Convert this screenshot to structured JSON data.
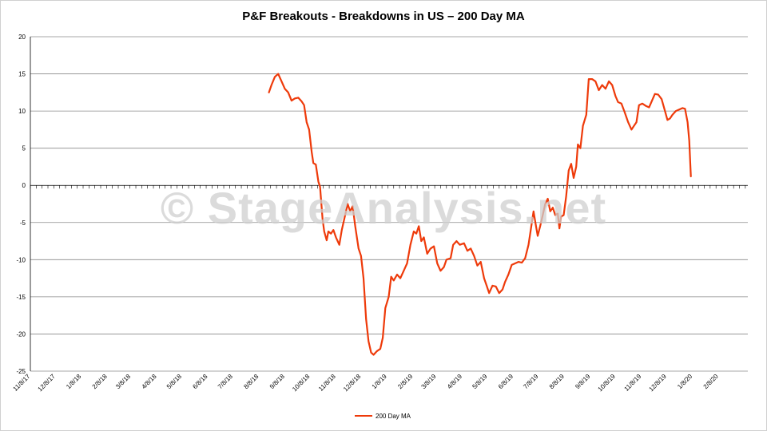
{
  "chart_data": {
    "type": "line",
    "title": "P&F Breakouts - Breakdowns in US – 200 Day MA",
    "xlabel": "",
    "ylabel": "",
    "ylim": [
      -25,
      20
    ],
    "y_ticks": [
      "20",
      "15",
      "10",
      "5",
      "0",
      "-5",
      "-10",
      "-15",
      "-20",
      "-25"
    ],
    "x_tick_labels": [
      "11/8/17",
      "12/8/17",
      "1/8/18",
      "2/8/18",
      "3/8/18",
      "4/8/18",
      "5/8/18",
      "6/8/18",
      "7/8/18",
      "8/8/18",
      "9/8/18",
      "10/8/18",
      "11/8/18",
      "12/8/18",
      "1/8/19",
      "2/8/19",
      "3/8/19",
      "4/8/19",
      "5/8/19",
      "6/8/19",
      "7/8/19",
      "8/8/19",
      "9/8/19",
      "10/8/19",
      "11/8/19",
      "12/8/19",
      "1/8/20",
      "2/8/20"
    ],
    "grid": true,
    "legend": "bottom",
    "series": [
      {
        "name": "200 Day MA",
        "color": "#ee3a0a",
        "points": [
          [
            "2018-08-20",
            12.5
          ],
          [
            "2018-08-23",
            13.5
          ],
          [
            "2018-08-27",
            14.6
          ],
          [
            "2018-08-31",
            15.0
          ],
          [
            "2018-09-04",
            14.0
          ],
          [
            "2018-09-08",
            13.0
          ],
          [
            "2018-09-12",
            12.5
          ],
          [
            "2018-09-16",
            11.4
          ],
          [
            "2018-09-20",
            11.7
          ],
          [
            "2018-09-24",
            11.8
          ],
          [
            "2018-09-28",
            11.3
          ],
          [
            "2018-10-01",
            10.8
          ],
          [
            "2018-10-04",
            8.5
          ],
          [
            "2018-10-07",
            7.5
          ],
          [
            "2018-10-10",
            4.5
          ],
          [
            "2018-10-12",
            3.0
          ],
          [
            "2018-10-15",
            2.8
          ],
          [
            "2018-10-18",
            0.5
          ],
          [
            "2018-10-20",
            -0.2
          ],
          [
            "2018-10-23",
            -4.5
          ],
          [
            "2018-10-25",
            -6.2
          ],
          [
            "2018-10-28",
            -7.4
          ],
          [
            "2018-10-30",
            -6.2
          ],
          [
            "2018-11-02",
            -6.5
          ],
          [
            "2018-11-05",
            -6.0
          ],
          [
            "2018-11-08",
            -7.0
          ],
          [
            "2018-11-12",
            -8.0
          ],
          [
            "2018-11-15",
            -6.0
          ],
          [
            "2018-11-19",
            -4.0
          ],
          [
            "2018-11-22",
            -2.5
          ],
          [
            "2018-11-25",
            -3.5
          ],
          [
            "2018-11-28",
            -2.8
          ],
          [
            "2018-12-01",
            -5.5
          ],
          [
            "2018-12-05",
            -8.5
          ],
          [
            "2018-12-08",
            -9.5
          ],
          [
            "2018-12-11",
            -12.5
          ],
          [
            "2018-12-14",
            -18.0
          ],
          [
            "2018-12-17",
            -21.0
          ],
          [
            "2018-12-20",
            -22.5
          ],
          [
            "2018-12-23",
            -22.8
          ],
          [
            "2018-12-27",
            -22.3
          ],
          [
            "2018-12-31",
            -22.0
          ],
          [
            "2019-01-03",
            -20.5
          ],
          [
            "2019-01-06",
            -16.5
          ],
          [
            "2019-01-10",
            -15.0
          ],
          [
            "2019-01-13",
            -12.3
          ],
          [
            "2019-01-16",
            -12.8
          ],
          [
            "2019-01-20",
            -12.0
          ],
          [
            "2019-01-24",
            -12.5
          ],
          [
            "2019-01-28",
            -11.5
          ],
          [
            "2019-02-01",
            -10.5
          ],
          [
            "2019-02-05",
            -8.0
          ],
          [
            "2019-02-09",
            -6.2
          ],
          [
            "2019-02-12",
            -6.5
          ],
          [
            "2019-02-15",
            -5.5
          ],
          [
            "2019-02-18",
            -7.5
          ],
          [
            "2019-02-21",
            -7.0
          ],
          [
            "2019-02-25",
            -9.2
          ],
          [
            "2019-03-01",
            -8.5
          ],
          [
            "2019-03-05",
            -8.2
          ],
          [
            "2019-03-09",
            -10.5
          ],
          [
            "2019-03-13",
            -11.5
          ],
          [
            "2019-03-17",
            -11.0
          ],
          [
            "2019-03-20",
            -10.0
          ],
          [
            "2019-03-25",
            -9.8
          ],
          [
            "2019-03-28",
            -8.0
          ],
          [
            "2019-04-01",
            -7.5
          ],
          [
            "2019-04-05",
            -8.0
          ],
          [
            "2019-04-10",
            -7.8
          ],
          [
            "2019-04-14",
            -8.8
          ],
          [
            "2019-04-18",
            -8.5
          ],
          [
            "2019-04-22",
            -9.5
          ],
          [
            "2019-04-26",
            -10.8
          ],
          [
            "2019-04-30",
            -10.3
          ],
          [
            "2019-05-04",
            -12.5
          ],
          [
            "2019-05-07",
            -13.5
          ],
          [
            "2019-05-10",
            -14.5
          ],
          [
            "2019-05-14",
            -13.5
          ],
          [
            "2019-05-18",
            -13.6
          ],
          [
            "2019-05-22",
            -14.5
          ],
          [
            "2019-05-26",
            -14.0
          ],
          [
            "2019-05-29",
            -13.0
          ],
          [
            "2019-06-02",
            -12.0
          ],
          [
            "2019-06-06",
            -10.7
          ],
          [
            "2019-06-10",
            -10.5
          ],
          [
            "2019-06-14",
            -10.3
          ],
          [
            "2019-06-18",
            -10.4
          ],
          [
            "2019-06-22",
            -9.8
          ],
          [
            "2019-06-26",
            -8.0
          ],
          [
            "2019-06-30",
            -5.0
          ],
          [
            "2019-07-02",
            -3.5
          ],
          [
            "2019-07-05",
            -5.5
          ],
          [
            "2019-07-07",
            -6.8
          ],
          [
            "2019-07-10",
            -5.5
          ],
          [
            "2019-07-13",
            -4.0
          ],
          [
            "2019-07-16",
            -2.5
          ],
          [
            "2019-07-19",
            -1.8
          ],
          [
            "2019-07-22",
            -3.5
          ],
          [
            "2019-07-25",
            -3.0
          ],
          [
            "2019-07-28",
            -4.0
          ],
          [
            "2019-07-31",
            -3.8
          ],
          [
            "2019-08-02",
            -5.8
          ],
          [
            "2019-08-04",
            -4.2
          ],
          [
            "2019-08-07",
            -4.0
          ],
          [
            "2019-08-10",
            -1.5
          ],
          [
            "2019-08-13",
            2.0
          ],
          [
            "2019-08-16",
            2.9
          ],
          [
            "2019-08-19",
            1.0
          ],
          [
            "2019-08-22",
            2.5
          ],
          [
            "2019-08-24",
            5.5
          ],
          [
            "2019-08-27",
            5.0
          ],
          [
            "2019-08-30",
            8.0
          ],
          [
            "2019-09-03",
            9.5
          ],
          [
            "2019-09-06",
            14.3
          ],
          [
            "2019-09-10",
            14.3
          ],
          [
            "2019-09-14",
            14.0
          ],
          [
            "2019-09-18",
            12.8
          ],
          [
            "2019-09-22",
            13.5
          ],
          [
            "2019-09-26",
            13.0
          ],
          [
            "2019-09-30",
            14.0
          ],
          [
            "2019-10-04",
            13.5
          ],
          [
            "2019-10-08",
            12.0
          ],
          [
            "2019-10-11",
            11.2
          ],
          [
            "2019-10-15",
            11.0
          ],
          [
            "2019-10-19",
            9.8
          ],
          [
            "2019-10-23",
            8.5
          ],
          [
            "2019-10-27",
            7.5
          ],
          [
            "2019-10-30",
            8.0
          ],
          [
            "2019-11-02",
            8.5
          ],
          [
            "2019-11-05",
            10.8
          ],
          [
            "2019-11-09",
            11.0
          ],
          [
            "2019-11-13",
            10.7
          ],
          [
            "2019-11-17",
            10.5
          ],
          [
            "2019-11-21",
            11.5
          ],
          [
            "2019-11-24",
            12.3
          ],
          [
            "2019-11-28",
            12.2
          ],
          [
            "2019-12-02",
            11.6
          ],
          [
            "2019-12-06",
            10.0
          ],
          [
            "2019-12-09",
            8.8
          ],
          [
            "2019-12-12",
            9.0
          ],
          [
            "2019-12-15",
            9.5
          ],
          [
            "2019-12-19",
            10.0
          ],
          [
            "2019-12-23",
            10.2
          ],
          [
            "2019-12-27",
            10.4
          ],
          [
            "2019-12-30",
            10.3
          ],
          [
            "2020-01-02",
            8.5
          ],
          [
            "2020-01-04",
            6.0
          ],
          [
            "2020-01-06",
            1.2
          ]
        ]
      }
    ]
  },
  "watermark": "© StageAnalysis.net",
  "colors": {
    "line": "#ee3a0a",
    "grid": "#8a8a8a",
    "axis": "#000000"
  }
}
